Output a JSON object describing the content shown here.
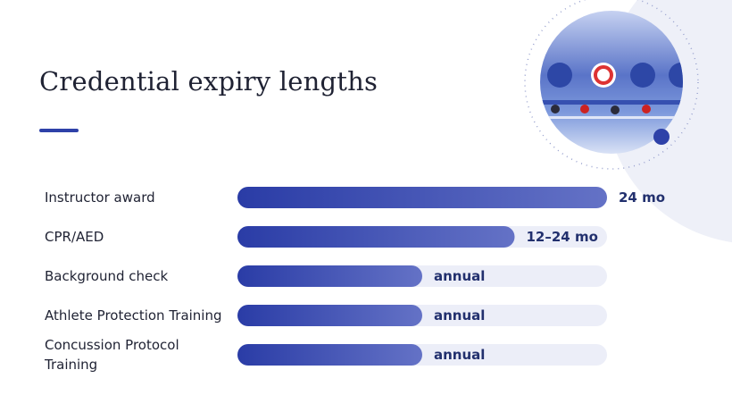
{
  "chart_data": {
    "type": "bar",
    "orientation": "horizontal",
    "title": "Credential expiry lengths",
    "categories": [
      "Instructor award",
      "CPR/AED",
      "Background check",
      "Athlete Protection Training",
      "Concussion Protocol Training"
    ],
    "values": [
      24,
      18,
      12,
      12,
      12
    ],
    "value_labels": [
      "24 mo",
      "12–24 mo",
      "annual",
      "annual",
      "annual"
    ],
    "color": "#2e41a8",
    "xlim": [
      0,
      24
    ]
  }
}
